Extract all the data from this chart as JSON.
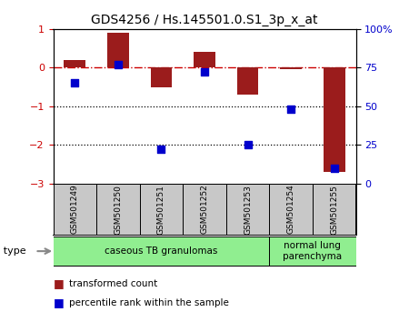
{
  "title": "GDS4256 / Hs.145501.0.S1_3p_x_at",
  "samples": [
    "GSM501249",
    "GSM501250",
    "GSM501251",
    "GSM501252",
    "GSM501253",
    "GSM501254",
    "GSM501255"
  ],
  "transformed_count": [
    0.2,
    0.9,
    -0.5,
    0.4,
    -0.7,
    -0.05,
    -2.7
  ],
  "percentile_rank": [
    65,
    77,
    22,
    72,
    25,
    48,
    10
  ],
  "ylim_left": [
    -3,
    1
  ],
  "ylim_right": [
    0,
    100
  ],
  "yticks_left": [
    -3,
    -2,
    -1,
    0,
    1
  ],
  "yticks_right": [
    0,
    25,
    50,
    75,
    100
  ],
  "ytick_labels_right": [
    "0",
    "25",
    "50",
    "75",
    "100%"
  ],
  "bar_color": "#9B1C1C",
  "dot_color": "#0000CC",
  "ref_line_color": "#CC0000",
  "dotted_line_color": "#000000",
  "cell_type_label": "cell type",
  "groups": [
    {
      "label": "caseous TB granulomas",
      "indices": [
        0,
        1,
        2,
        3,
        4
      ],
      "color": "#90EE90"
    },
    {
      "label": "normal lung\nparenchyma",
      "indices": [
        5,
        6
      ],
      "color": "#90EE90"
    }
  ],
  "legend_tc": "transformed count",
  "legend_pr": "percentile rank within the sample",
  "background_color": "#FFFFFF",
  "tick_label_color_left": "#CC0000",
  "tick_label_color_right": "#0000CC",
  "xtick_bg": "#C8C8C8",
  "bar_width": 0.5
}
